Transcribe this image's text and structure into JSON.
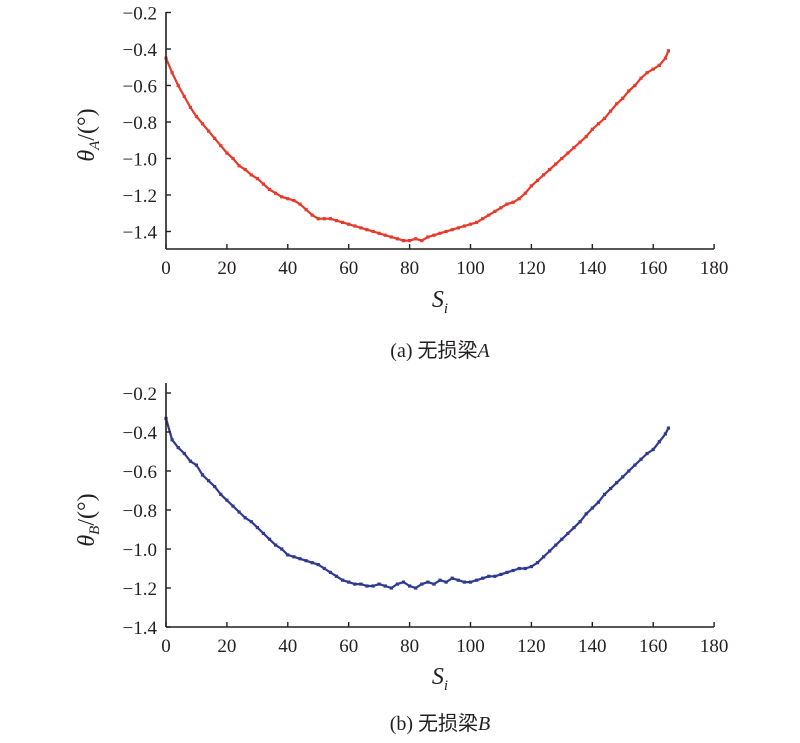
{
  "charts": {
    "a": {
      "caption_prefix": "(a) 无损梁",
      "caption_var": "A",
      "ylabel_symbol": "θ",
      "ylabel_sub": "A",
      "ylabel_unit": "/(°)",
      "xlabel_symbol": "S",
      "xlabel_sub": "i",
      "xticks": [
        "0",
        "20",
        "40",
        "60",
        "80",
        "100",
        "120",
        "140",
        "160",
        "180"
      ],
      "yticks": [
        "−0.2",
        "−0.4",
        "−0.6",
        "−0.8",
        "−1.0",
        "−1.2",
        "−1.4"
      ]
    },
    "b": {
      "caption_prefix": "(b) 无损梁",
      "caption_var": "B",
      "ylabel_symbol": "θ",
      "ylabel_sub": "B",
      "ylabel_unit": "/(°)",
      "xlabel_symbol": "S",
      "xlabel_sub": "i",
      "xticks": [
        "0",
        "20",
        "40",
        "60",
        "80",
        "100",
        "120",
        "140",
        "160",
        "180"
      ],
      "yticks": [
        "−0.2",
        "−0.4",
        "−0.6",
        "−0.8",
        "−1.0",
        "−1.2",
        "−1.4"
      ]
    }
  },
  "chart_data": [
    {
      "type": "line",
      "title": "(a) 无损梁A",
      "xlabel": "Si",
      "ylabel": "θA/(°)",
      "xlim": [
        0,
        180
      ],
      "ylim": [
        -1.5,
        -0.2
      ],
      "grid": false,
      "legend": "none",
      "color": "#e8392a",
      "series": [
        {
          "x": [
            0,
            2,
            4,
            6,
            8,
            10,
            12,
            14,
            16,
            18,
            20,
            22,
            24,
            26,
            28,
            30,
            32,
            34,
            36,
            38,
            40,
            42,
            44,
            46,
            48,
            50,
            52,
            54,
            56,
            58,
            60,
            62,
            64,
            66,
            68,
            70,
            72,
            74,
            76,
            78,
            80,
            82,
            84,
            86,
            88,
            90,
            92,
            94,
            96,
            98,
            100,
            102,
            104,
            106,
            108,
            110,
            112,
            114,
            116,
            118,
            120,
            122,
            124,
            126,
            128,
            130,
            132,
            134,
            136,
            138,
            140,
            142,
            144,
            146,
            148,
            150,
            152,
            154,
            156,
            158,
            160,
            162,
            164,
            165
          ],
          "y": [
            -0.45,
            -0.53,
            -0.6,
            -0.66,
            -0.72,
            -0.77,
            -0.81,
            -0.85,
            -0.89,
            -0.93,
            -0.97,
            -1.0,
            -1.04,
            -1.06,
            -1.09,
            -1.11,
            -1.14,
            -1.17,
            -1.19,
            -1.21,
            -1.22,
            -1.23,
            -1.25,
            -1.28,
            -1.31,
            -1.33,
            -1.33,
            -1.33,
            -1.34,
            -1.35,
            -1.36,
            -1.37,
            -1.38,
            -1.39,
            -1.4,
            -1.41,
            -1.42,
            -1.43,
            -1.44,
            -1.45,
            -1.45,
            -1.44,
            -1.45,
            -1.43,
            -1.42,
            -1.41,
            -1.4,
            -1.39,
            -1.38,
            -1.37,
            -1.36,
            -1.35,
            -1.33,
            -1.31,
            -1.29,
            -1.27,
            -1.25,
            -1.24,
            -1.22,
            -1.19,
            -1.15,
            -1.12,
            -1.09,
            -1.06,
            -1.03,
            -1.0,
            -0.97,
            -0.94,
            -0.91,
            -0.88,
            -0.84,
            -0.81,
            -0.78,
            -0.74,
            -0.7,
            -0.67,
            -0.63,
            -0.6,
            -0.56,
            -0.53,
            -0.51,
            -0.49,
            -0.45,
            -0.41
          ]
        }
      ]
    },
    {
      "type": "line",
      "title": "(b) 无损梁B",
      "xlabel": "Si",
      "ylabel": "θB/(°)",
      "xlim": [
        0,
        180
      ],
      "ylim": [
        -1.4,
        -0.2
      ],
      "grid": false,
      "legend": "none",
      "color": "#2f3a8f",
      "series": [
        {
          "x": [
            0,
            2,
            4,
            6,
            8,
            10,
            12,
            14,
            16,
            18,
            20,
            22,
            24,
            26,
            28,
            30,
            32,
            34,
            36,
            38,
            40,
            42,
            44,
            46,
            48,
            50,
            52,
            54,
            56,
            58,
            60,
            62,
            64,
            66,
            68,
            70,
            72,
            74,
            76,
            78,
            80,
            82,
            84,
            86,
            88,
            90,
            92,
            94,
            96,
            98,
            100,
            102,
            104,
            106,
            108,
            110,
            112,
            114,
            116,
            118,
            120,
            122,
            124,
            126,
            128,
            130,
            132,
            134,
            136,
            138,
            140,
            142,
            144,
            146,
            148,
            150,
            152,
            154,
            156,
            158,
            160,
            162,
            164,
            165
          ],
          "y": [
            -0.33,
            -0.44,
            -0.48,
            -0.51,
            -0.55,
            -0.57,
            -0.62,
            -0.65,
            -0.68,
            -0.72,
            -0.75,
            -0.78,
            -0.81,
            -0.84,
            -0.86,
            -0.89,
            -0.92,
            -0.95,
            -0.98,
            -1.0,
            -1.03,
            -1.04,
            -1.05,
            -1.06,
            -1.07,
            -1.08,
            -1.1,
            -1.12,
            -1.14,
            -1.16,
            -1.17,
            -1.18,
            -1.18,
            -1.19,
            -1.19,
            -1.18,
            -1.19,
            -1.2,
            -1.18,
            -1.17,
            -1.19,
            -1.2,
            -1.18,
            -1.17,
            -1.18,
            -1.16,
            -1.17,
            -1.15,
            -1.16,
            -1.17,
            -1.17,
            -1.16,
            -1.15,
            -1.14,
            -1.14,
            -1.13,
            -1.12,
            -1.11,
            -1.1,
            -1.1,
            -1.09,
            -1.07,
            -1.04,
            -1.01,
            -0.98,
            -0.95,
            -0.92,
            -0.89,
            -0.86,
            -0.82,
            -0.79,
            -0.76,
            -0.72,
            -0.69,
            -0.66,
            -0.63,
            -0.6,
            -0.57,
            -0.54,
            -0.51,
            -0.49,
            -0.45,
            -0.41,
            -0.38
          ]
        }
      ]
    }
  ]
}
